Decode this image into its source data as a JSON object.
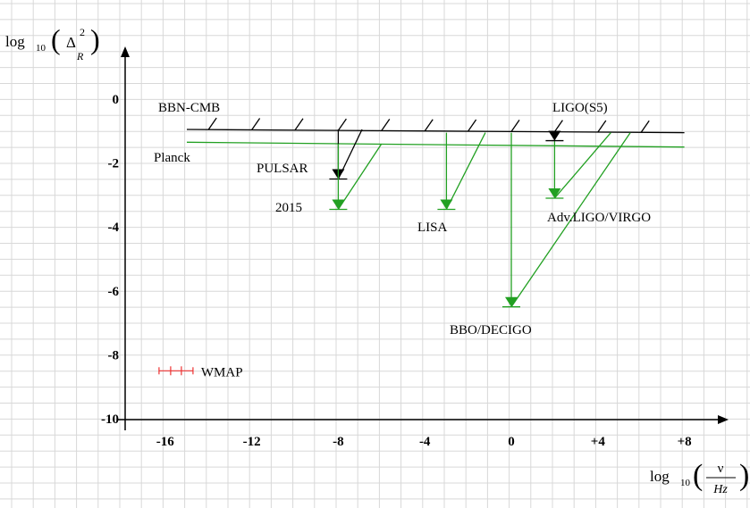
{
  "chart_data": {
    "type": "line",
    "title": "",
    "xlim": [
      -18,
      8.5
    ],
    "ylim": [
      -10,
      1.9
    ],
    "x_ticks": [
      -16,
      -12,
      -8,
      -4,
      0,
      4,
      8
    ],
    "x_tick_labels": [
      "-16",
      "-12",
      "-8",
      "-4",
      "0",
      "+4",
      "+8"
    ],
    "y_ticks": [
      0,
      -2,
      -4,
      -6,
      -8,
      -10
    ],
    "y_tick_labels": [
      "0",
      "-2",
      "-4",
      "-6",
      "-8",
      "-10"
    ],
    "grid": true,
    "xlabel": {
      "prefix": "log",
      "sub": "10",
      "num": "ν",
      "den": "Hz"
    },
    "ylabel": {
      "prefix": "log",
      "sub": "10",
      "delta": "Δ",
      "sup": "2",
      "sub2": "R"
    },
    "colors": {
      "black": "#000000",
      "green": "#22a022",
      "red": "#ee3333",
      "grid": "#d8d8d8"
    },
    "bbn_cmb": {
      "label": "BBN-CMB",
      "x": [
        -15,
        8
      ],
      "y": [
        -0.95,
        -1.05
      ]
    },
    "planck": {
      "label": "Planck",
      "x": [
        -15,
        8
      ],
      "y": [
        -1.35,
        -1.5
      ]
    },
    "constraints": [
      {
        "label": "PULSAR",
        "color": "black",
        "x": -8,
        "y_top": -0.95,
        "y_bottom": -2.5,
        "slant_to_x": -6.9
      },
      {
        "label": "2015",
        "color": "green",
        "x": -8,
        "y_top": -1.4,
        "y_bottom": -3.45,
        "slant_to_x": -6
      },
      {
        "label": "LISA",
        "color": "green",
        "x": -3,
        "y_top": -1.05,
        "y_bottom": -3.45,
        "slant_to_x": -1.2
      },
      {
        "label": "BBO/DECIGO",
        "color": "green",
        "x": 0,
        "y_top": -1.05,
        "y_bottom": -6.5,
        "slant_to_x": 5.5
      },
      {
        "label": "Adv.LIGO/VIRGO",
        "color": "green",
        "x": 2,
        "y_top": -1.05,
        "y_bottom": -3.1,
        "slant_to_x": 4.6
      },
      {
        "label": "LIGO(S5)",
        "color": "black",
        "x": 2,
        "y_top": -1.05,
        "y_bottom": -1.3,
        "slant_to_x": 2
      }
    ],
    "wmap": {
      "label": "WMAP",
      "x": -15.5,
      "y": -8.5,
      "color": "red"
    }
  }
}
